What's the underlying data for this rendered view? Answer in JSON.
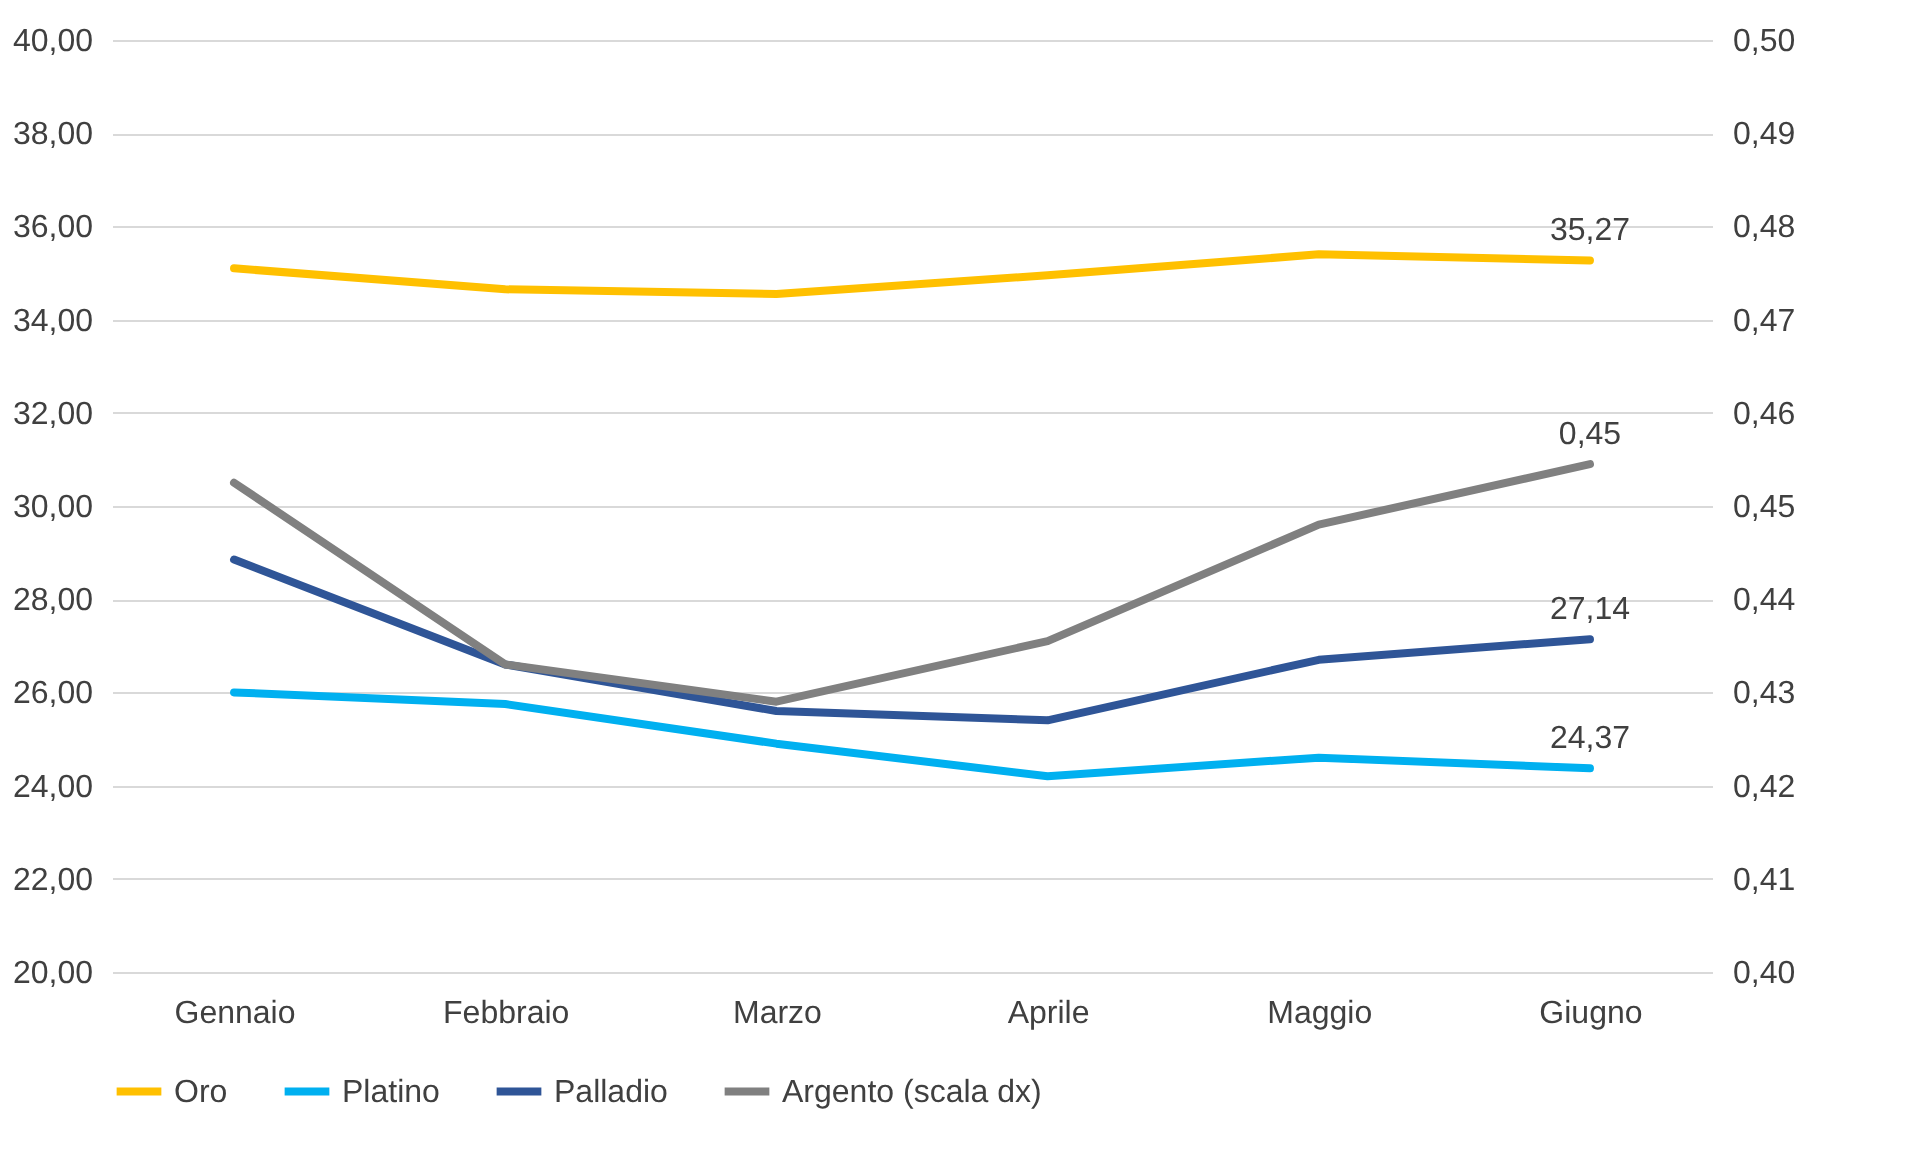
{
  "chart_data": {
    "type": "line",
    "categories": [
      "Gennaio",
      "Febbraio",
      "Marzo",
      "Aprile",
      "Maggio",
      "Giugno"
    ],
    "series": [
      {
        "name": "Oro",
        "color": "#ffc000",
        "values": [
          35.1,
          34.65,
          34.55,
          34.95,
          35.4,
          35.27
        ],
        "value_labels": [
          null,
          null,
          null,
          null,
          null,
          "35,27"
        ]
      },
      {
        "name": "Platino",
        "color": "#00b0f0",
        "values": [
          26.0,
          25.75,
          24.9,
          24.2,
          24.6,
          24.37
        ],
        "value_labels": [
          null,
          null,
          null,
          null,
          null,
          "24,37"
        ]
      },
      {
        "name": "Palladio",
        "color": "#2f5597",
        "values": [
          28.85,
          26.6,
          25.6,
          25.4,
          26.7,
          27.14
        ],
        "value_labels": [
          null,
          null,
          null,
          null,
          null,
          "27,14"
        ]
      },
      {
        "name": "Argento (scala dx)",
        "color": "#808080",
        "axis": "y2",
        "values": [
          0.4525,
          0.433,
          0.429,
          0.4355,
          0.448,
          0.4545
        ],
        "value_labels": [
          null,
          null,
          null,
          null,
          null,
          "0,45"
        ]
      }
    ],
    "ylim": [
      20,
      40
    ],
    "yticks": [
      {
        "value": 20,
        "label": "20,00"
      },
      {
        "value": 22,
        "label": "22,00"
      },
      {
        "value": 24,
        "label": "24,00"
      },
      {
        "value": 26,
        "label": "26,00"
      },
      {
        "value": 28,
        "label": "28,00"
      },
      {
        "value": 30,
        "label": "30,00"
      },
      {
        "value": 32,
        "label": "32,00"
      },
      {
        "value": 34,
        "label": "34,00"
      },
      {
        "value": 36,
        "label": "36,00"
      },
      {
        "value": 38,
        "label": "38,00"
      },
      {
        "value": 40,
        "label": "40,00"
      }
    ],
    "y2lim": [
      0.4,
      0.5
    ],
    "y2ticks": [
      {
        "value": 0.4,
        "label": "0,40"
      },
      {
        "value": 0.41,
        "label": "0,41"
      },
      {
        "value": 0.42,
        "label": "0,42"
      },
      {
        "value": 0.43,
        "label": "0,43"
      },
      {
        "value": 0.44,
        "label": "0,44"
      },
      {
        "value": 0.45,
        "label": "0,45"
      },
      {
        "value": 0.46,
        "label": "0,46"
      },
      {
        "value": 0.47,
        "label": "0,47"
      },
      {
        "value": 0.48,
        "label": "0,48"
      },
      {
        "value": 0.49,
        "label": "0,49"
      },
      {
        "value": 0.5,
        "label": "0,50"
      }
    ],
    "grid": "y",
    "legend": "bottom",
    "marker": "none",
    "line_style": "solid"
  }
}
